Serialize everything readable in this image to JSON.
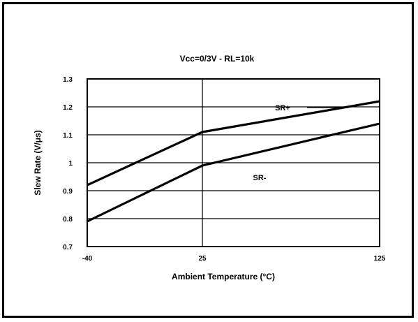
{
  "chart_data": {
    "type": "line",
    "title": "Vcc=0/3V - RL=10k",
    "xlabel": "Ambient Temperature (°C)",
    "ylabel": "Slew Rate (V/μs)",
    "x_ticks": [
      "-40",
      "25",
      "125"
    ],
    "x_tick_values": [
      -40,
      25,
      125
    ],
    "y_ticks": [
      "0.7",
      "0.8",
      "0.9",
      "1",
      "1.1",
      "1.2",
      "1.3"
    ],
    "y_tick_values": [
      0.7,
      0.8,
      0.9,
      1.0,
      1.1,
      1.2,
      1.3
    ],
    "xlim": [
      -40,
      125
    ],
    "ylim": [
      0.7,
      1.3
    ],
    "grid": true,
    "series": [
      {
        "name": "SR+",
        "x": [
          -40,
          25,
          125
        ],
        "y": [
          0.92,
          1.11,
          1.22
        ]
      },
      {
        "name": "SR-",
        "x": [
          -40,
          25,
          125
        ],
        "y": [
          0.79,
          0.99,
          1.14
        ]
      }
    ],
    "colors": {
      "line": "#000000",
      "grid": "#000000",
      "background": "#ffffff"
    }
  }
}
